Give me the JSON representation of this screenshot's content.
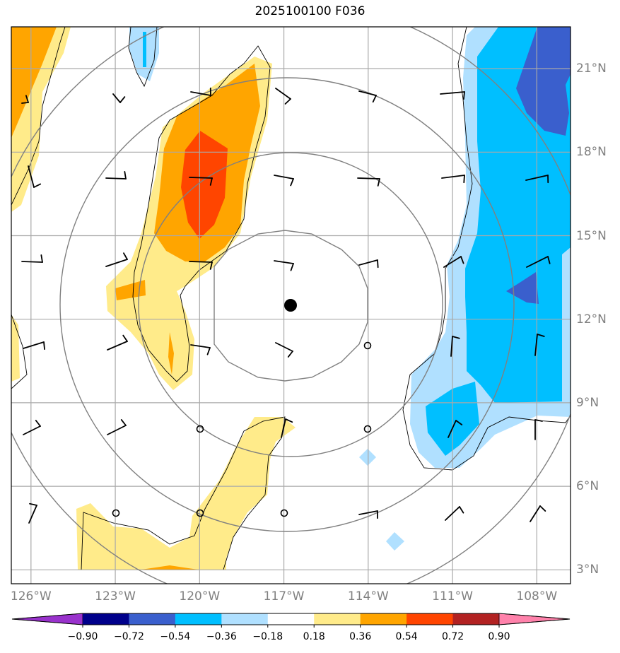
{
  "title": "2025100100 F036",
  "map": {
    "lon_range": [
      -126.7,
      -106.8
    ],
    "lat_range": [
      2.5,
      22.5
    ],
    "center": {
      "lon": -116.8,
      "lat": 12.4
    },
    "lon_ticks": [
      {
        "value": -126,
        "label": "126°W"
      },
      {
        "value": -123,
        "label": "123°W"
      },
      {
        "value": -120,
        "label": "120°W"
      },
      {
        "value": -117,
        "label": "117°W"
      },
      {
        "value": -114,
        "label": "114°W"
      },
      {
        "value": -111,
        "label": "111°W"
      },
      {
        "value": -108,
        "label": "108°W"
      }
    ],
    "lat_ticks": [
      {
        "value": 3,
        "label": "3°N"
      },
      {
        "value": 6,
        "label": "6°N"
      },
      {
        "value": 9,
        "label": "9°N"
      },
      {
        "value": 12,
        "label": "12°N"
      },
      {
        "value": 15,
        "label": "15°N"
      },
      {
        "value": 18,
        "label": "18°N"
      },
      {
        "value": 21,
        "label": "21°N"
      }
    ]
  },
  "colorbar": {
    "colors": [
      "#9932cc",
      "#00008b",
      "#3a5fcd",
      "#00bfff",
      "#b0e0ff",
      "#ffffff",
      "#ffeb8a",
      "#ffa500",
      "#ff4500",
      "#b22222",
      "#ff82ab"
    ],
    "labels": [
      "−0.90",
      "−0.72",
      "−0.54",
      "−0.36",
      "−0.18",
      "0.18",
      "0.36",
      "0.54",
      "0.72",
      "0.90"
    ]
  }
}
